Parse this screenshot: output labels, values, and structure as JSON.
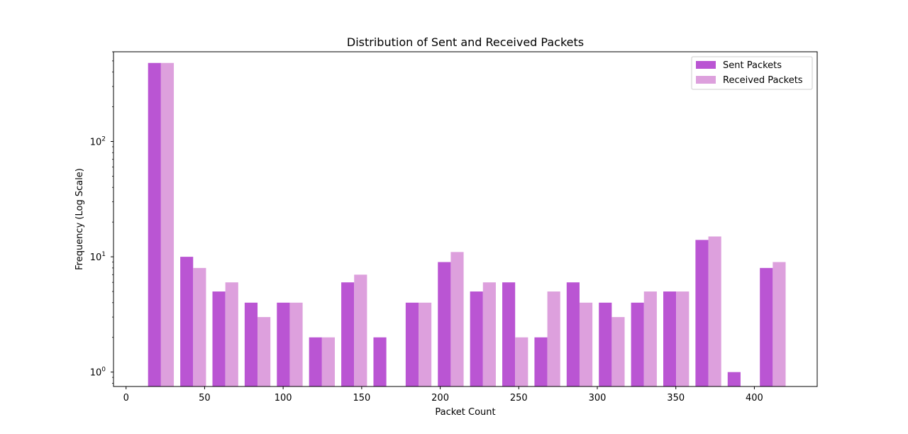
{
  "chart_data": {
    "type": "bar",
    "title": "Distribution of Sent and Received Packets",
    "xlabel": "Packet Count",
    "ylabel": "Frequency (Log Scale)",
    "y_scale": "log",
    "xlim": [
      -8,
      440
    ],
    "ylim": [
      0.75,
      600
    ],
    "x_ticks": [
      0,
      50,
      100,
      150,
      200,
      250,
      300,
      350,
      400
    ],
    "y_ticks": [
      {
        "value": 1,
        "base": "10",
        "exp": "0"
      },
      {
        "value": 10,
        "base": "10",
        "exp": "1"
      },
      {
        "value": 100,
        "base": "10",
        "exp": "2"
      }
    ],
    "bin_starts": [
      14.0,
      34.5,
      55.0,
      75.5,
      96.0,
      116.5,
      137.0,
      157.5,
      178.0,
      198.5,
      219.0,
      239.5,
      260.0,
      280.5,
      301.0,
      321.5,
      342.0,
      362.5,
      383.0,
      403.5
    ],
    "bar_width": 8.2,
    "series": [
      {
        "name": "Sent Packets",
        "color": "#ba55d3",
        "values": [
          480,
          10,
          5,
          4,
          4,
          2,
          6,
          2,
          4,
          9,
          5,
          6,
          2,
          6,
          4,
          4,
          5,
          14,
          1,
          8
        ]
      },
      {
        "name": "Received Packets",
        "color": "#dda0dd",
        "values": [
          480,
          8,
          6,
          3,
          4,
          2,
          7,
          0,
          4,
          11,
          6,
          2,
          5,
          4,
          3,
          5,
          5,
          15,
          0,
          9
        ]
      }
    ],
    "legend_position": "top-right",
    "grid": false
  }
}
